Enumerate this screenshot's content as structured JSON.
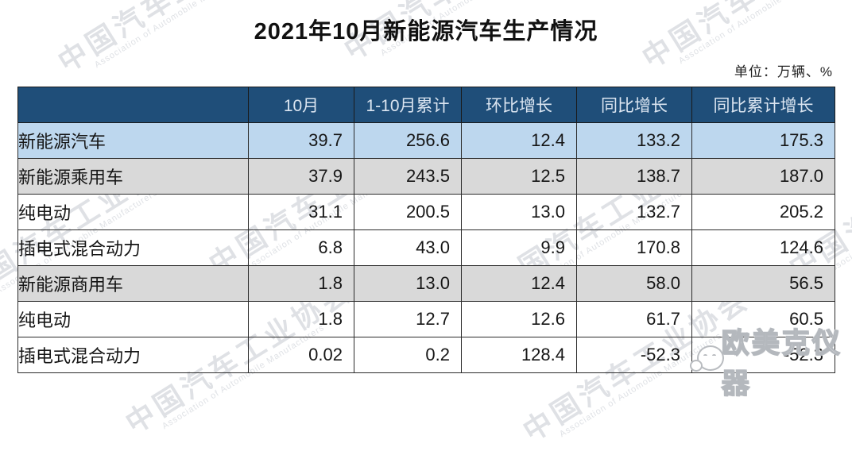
{
  "title": "2021年10月新能源汽车生产情况",
  "unit_note": "单位：万辆、%",
  "table": {
    "columns": [
      "",
      "10月",
      "1-10月累计",
      "环比增长",
      "同比增长",
      "同比累计增长"
    ],
    "rows": [
      {
        "label": "新能源汽车",
        "indent": 0,
        "style": "highlight-blue",
        "values": [
          "39.7",
          "256.6",
          "12.4",
          "133.2",
          "175.3"
        ]
      },
      {
        "label": "新能源乘用车",
        "indent": 1,
        "style": "highlight-gray",
        "values": [
          "37.9",
          "243.5",
          "12.5",
          "138.7",
          "187.0"
        ]
      },
      {
        "label": "纯电动",
        "indent": 2,
        "style": "plain",
        "values": [
          "31.1",
          "200.5",
          "13.0",
          "132.7",
          "205.2"
        ]
      },
      {
        "label": "插电式混合动力",
        "indent": 2,
        "style": "plain",
        "values": [
          "6.8",
          "43.0",
          "9.9",
          "170.8",
          "124.6"
        ]
      },
      {
        "label": "新能源商用车",
        "indent": 1,
        "style": "highlight-gray",
        "values": [
          "1.8",
          "13.0",
          "12.4",
          "58.0",
          "56.5"
        ]
      },
      {
        "label": "纯电动",
        "indent": 2,
        "style": "plain",
        "values": [
          "1.8",
          "12.7",
          "12.6",
          "61.7",
          "60.5"
        ]
      },
      {
        "label": "插电式混合动力",
        "indent": 2,
        "style": "plain",
        "values": [
          "0.02",
          "0.2",
          "128.4",
          "-52.3",
          "-52.3"
        ]
      }
    ]
  },
  "watermarks": {
    "diagonal_text": "中国汽车工业协会",
    "diagonal_subtext": "Association of Automobile Manufacturers",
    "corner_text": "欧美克仪器"
  },
  "colors": {
    "header_bg": "#1f4e79",
    "header_text": "#dbe5f1",
    "row_blue": "#bdd7ee",
    "row_gray": "#d9d9d9",
    "border": "#2b2b2b"
  },
  "chart_data": {
    "type": "table",
    "title": "2021年10月新能源汽车生产情况",
    "unit": "万辆、%",
    "columns": [
      "10月",
      "1-10月累计",
      "环比增长",
      "同比增长",
      "同比累计增长"
    ],
    "rows": [
      {
        "name": "新能源汽车",
        "values": [
          39.7,
          256.6,
          12.4,
          133.2,
          175.3
        ]
      },
      {
        "name": "新能源乘用车",
        "values": [
          37.9,
          243.5,
          12.5,
          138.7,
          187.0
        ]
      },
      {
        "name": "纯电动",
        "values": [
          31.1,
          200.5,
          13.0,
          132.7,
          205.2
        ]
      },
      {
        "name": "插电式混合动力",
        "values": [
          6.8,
          43.0,
          9.9,
          170.8,
          124.6
        ]
      },
      {
        "name": "新能源商用车",
        "values": [
          1.8,
          13.0,
          12.4,
          58.0,
          56.5
        ]
      },
      {
        "name": "纯电动",
        "values": [
          1.8,
          12.7,
          12.6,
          61.7,
          60.5
        ]
      },
      {
        "name": "插电式混合动力",
        "values": [
          0.02,
          0.2,
          128.4,
          -52.3,
          -52.3
        ]
      }
    ]
  }
}
